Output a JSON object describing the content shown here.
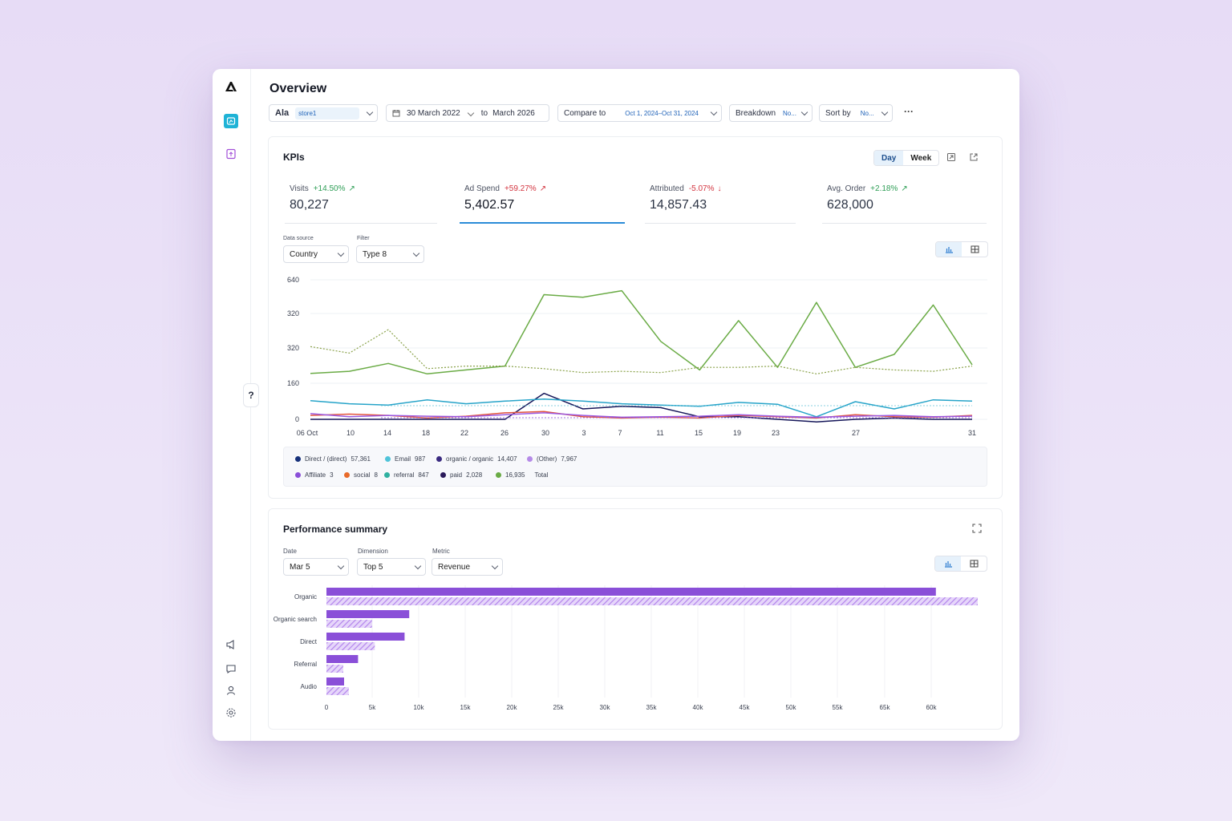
{
  "page": {
    "title": "Overview"
  },
  "filters": {
    "account": {
      "label": "Ala",
      "store": "store1"
    },
    "date": {
      "from": "30 March 2022",
      "to_word": "to",
      "to": "March 2026"
    },
    "compare": {
      "label": "Compare to",
      "value": "Oct 1, 2024–Oct 31, 2024"
    },
    "breakdown": {
      "label": "Breakdown",
      "value": "No..."
    },
    "sort": {
      "label": "Sort by",
      "value": "No..."
    },
    "more": "···"
  },
  "kpis_card": {
    "title": "KPIs",
    "granularity": {
      "day": "Day",
      "week": "Week",
      "selected": "Day"
    },
    "kpis": [
      {
        "label": "Visits",
        "change": "+14.50%",
        "trend": "up",
        "value": "80,227"
      },
      {
        "label": "Ad Spend",
        "change": "+59.27%",
        "trend": "up-red",
        "value": "5,402.57",
        "active": true
      },
      {
        "label": "Attributed",
        "change": "-5.07%",
        "trend": "down",
        "value": "14,857.43"
      },
      {
        "label": "Avg. Order",
        "change": "+2.18%",
        "trend": "up",
        "value": "628,000"
      }
    ],
    "data_source": {
      "label": "Data source",
      "value": "Country"
    },
    "filter": {
      "label": "Filter",
      "value": "Type 8"
    }
  },
  "colors": {
    "green": "#6aab45",
    "navy": "#16175a",
    "teal": "#27a4c9",
    "red": "#e2563f",
    "purple": "#8a4fd8",
    "violet": "#9b59e0"
  },
  "chart_data": [
    {
      "type": "line",
      "y_tick_labels": [
        "640",
        "320",
        "320",
        "160",
        "0"
      ],
      "x_tick_labels": [
        "06 Oct",
        "10",
        "14",
        "18",
        "22",
        "26",
        "30",
        "3",
        "7",
        "11",
        "15",
        "19",
        "23",
        "27",
        "31"
      ],
      "series": [
        {
          "name": "Total",
          "color": "#6aab45",
          "style": "solid",
          "values": [
            177,
            185,
            215,
            175,
            190,
            205,
            480,
            470,
            495,
            300,
            190,
            380,
            200,
            450,
            200,
            250,
            440,
            210
          ]
        },
        {
          "color": "#8aa24a",
          "style": "dotted",
          "values": [
            280,
            255,
            345,
            195,
            205,
            205,
            195,
            180,
            185,
            180,
            200,
            200,
            205,
            175,
            200,
            190,
            185,
            205
          ]
        },
        {
          "name": "Direct / (direct)",
          "color": "#16175a",
          "style": "solid",
          "values": [
            0,
            0,
            0,
            0,
            0,
            0,
            100,
            40,
            50,
            45,
            10,
            10,
            0,
            -10,
            0,
            5,
            0,
            0
          ]
        },
        {
          "name": "Email",
          "color": "#27a4c9",
          "style": "solid",
          "values": [
            72,
            60,
            55,
            75,
            60,
            70,
            78,
            70,
            60,
            55,
            50,
            65,
            58,
            10,
            68,
            40,
            75,
            70
          ]
        },
        {
          "name": "social",
          "color": "#e2563f",
          "style": "solid",
          "values": [
            15,
            20,
            15,
            5,
            12,
            25,
            30,
            10,
            5,
            8,
            5,
            15,
            10,
            5,
            18,
            10,
            8,
            15
          ]
        },
        {
          "name": "Affiliate",
          "color": "#9b59e0",
          "style": "solid",
          "values": [
            22,
            10,
            15,
            12,
            10,
            18,
            25,
            15,
            8,
            10,
            12,
            18,
            12,
            8,
            12,
            15,
            10,
            12
          ]
        }
      ]
    },
    {
      "type": "bar",
      "categories": [
        "Organic",
        "Organic search",
        "Direct",
        "Referral",
        "Audio"
      ],
      "series": [
        {
          "values": [
            65500,
            8900,
            8400,
            3400,
            1900
          ],
          "color": "#8a4fd8"
        },
        {
          "values": [
            70000,
            4900,
            5200,
            1800,
            2400
          ],
          "color": "#c9a8f0",
          "pattern": "hatched"
        }
      ],
      "x_tick_labels": [
        "0",
        "5k",
        "10k",
        "15k",
        "20k",
        "25k",
        "30k",
        "35k",
        "40k",
        "45k",
        "50k",
        "55k",
        "65k",
        "60k"
      ],
      "xlim": [
        0,
        70000
      ]
    }
  ],
  "legend": [
    {
      "name": "Direct / (direct)",
      "value": "57,361",
      "color": "#16307a"
    },
    {
      "name": "Email",
      "value": "987",
      "color": "#4fc3d9"
    },
    {
      "name": "organic / organic",
      "value": "14,407",
      "color": "#3a2a80"
    },
    {
      "name": "(Other)",
      "value": "7,967",
      "color": "#b58ae8"
    },
    {
      "name": "Affiliate",
      "value": "3",
      "color": "#8a4fd8"
    },
    {
      "name": "social",
      "value": "8",
      "color": "#e86a2a"
    },
    {
      "name": "referral",
      "value": "847",
      "color": "#2fb0a0"
    },
    {
      "name": "paid",
      "value": "2,028",
      "color": "#2a1a5a"
    },
    {
      "name": "16,935",
      "value": "Total",
      "color": "#6aab45"
    }
  ],
  "performance": {
    "title": "Performance summary",
    "date": {
      "label": "Date",
      "value": "Mar 5"
    },
    "dimension": {
      "label": "Dimension",
      "value": "Top 5"
    },
    "metric": {
      "label": "Metric",
      "value": "Revenue"
    }
  },
  "icons": {
    "logo": "logo-icon",
    "dashboard": "dashboard-icon",
    "reports": "reports-icon",
    "announcements": "megaphone-icon",
    "messages": "chat-icon",
    "profile": "user-icon",
    "settings": "gear-icon"
  }
}
